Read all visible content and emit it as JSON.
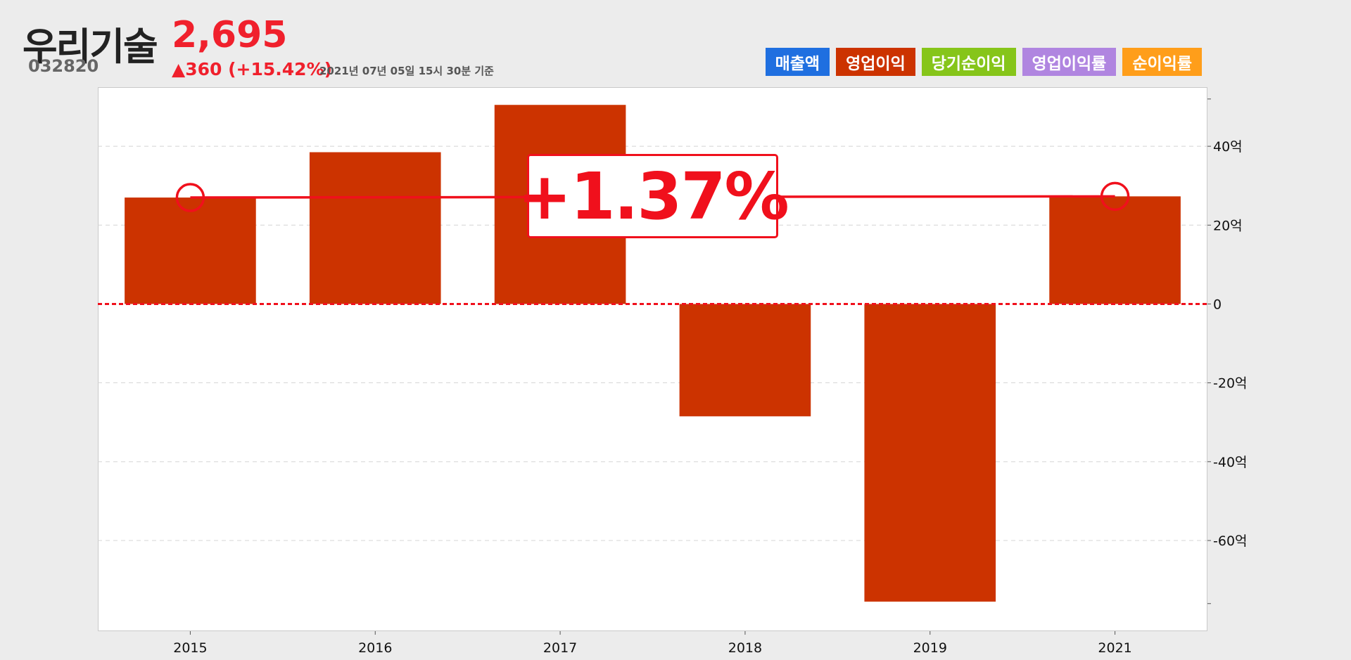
{
  "header": {
    "company": "우리기술",
    "code": "032820",
    "price": "2,695",
    "change": "▲360 (+15.42%)",
    "as_of": "2021년 07년 05일 15시 30분 기준"
  },
  "tabs": [
    {
      "label": "매출액",
      "color": "#1f6fe0"
    },
    {
      "label": "영업이익",
      "color": "#cc3300"
    },
    {
      "label": "당기순이익",
      "color": "#86c51a"
    },
    {
      "label": "영업이익률",
      "color": "#b085e0"
    },
    {
      "label": "순이익률",
      "color": "#ff9e1a"
    }
  ],
  "growth_badge": "+1.37%",
  "chart_data": {
    "type": "bar",
    "categories": [
      "2015",
      "2016",
      "2017",
      "2018",
      "2019",
      "2021"
    ],
    "values": [
      27,
      38.5,
      50.5,
      -28.5,
      -75.5,
      27.3
    ],
    "y_ticks": [
      40,
      20,
      0,
      -20,
      -40,
      -60
    ],
    "y_tick_labels": [
      "40억",
      "20억",
      "0",
      "-20억",
      "-40억",
      "-60억"
    ],
    "ylim": [
      -83,
      55
    ],
    "bar_color": "#cc3300",
    "zero_line_color": "#f0101c",
    "grid": true,
    "trend": {
      "from": "2015",
      "to": "2021",
      "from_value": 27,
      "to_value": 27.3,
      "color": "#f0101c"
    }
  }
}
